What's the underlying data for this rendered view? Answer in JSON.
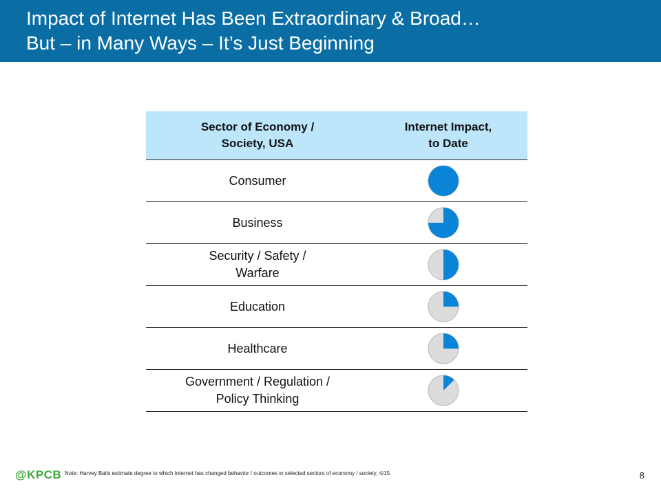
{
  "title": {
    "line1": "Impact of Internet Has Been Extraordinary & Broad…",
    "line2": "But – in Many Ways – It’s Just Beginning"
  },
  "table": {
    "header_sector": "Sector of Economy /\nSociety, USA",
    "header_impact": "Internet Impact,\nto Date",
    "rows": [
      {
        "sector": "Consumer",
        "impact": 1.0
      },
      {
        "sector": "Business",
        "impact": 0.75
      },
      {
        "sector": "Security / Safety /\nWarfare",
        "impact": 0.5
      },
      {
        "sector": "Education",
        "impact": 0.25
      },
      {
        "sector": "Healthcare",
        "impact": 0.25
      },
      {
        "sector": "Government / Regulation /\nPolicy Thinking",
        "impact": 0.125
      }
    ]
  },
  "colors": {
    "title_bar": "#0a6ea5",
    "header_fill": "#bde6fb",
    "ball_fill": "#0a84d6",
    "ball_empty": "#dcdcdc",
    "logo": "#3aaa35"
  },
  "footer": {
    "logo": "@KPCB",
    "note": "Note: Harvey Balls estimate degree to which Internet has changed behavior / outcomes in selected sectors of economy / society, 4/15.",
    "page_number": "8"
  }
}
